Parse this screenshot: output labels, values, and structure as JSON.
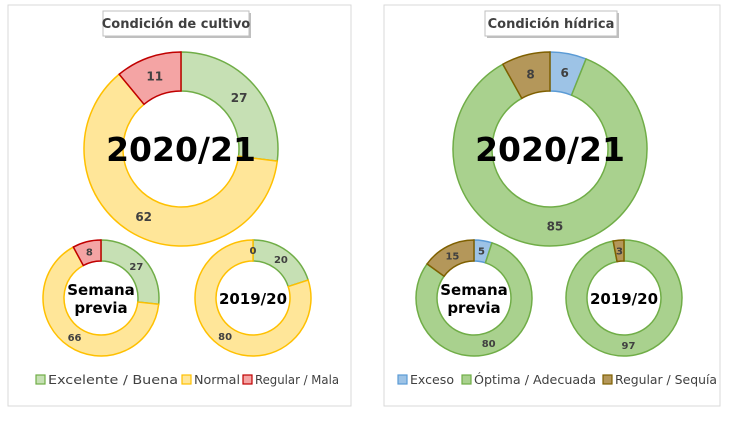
{
  "chart_data": [
    {
      "type": "pie",
      "title": "Condición de cultivo",
      "categories": [
        "Excelente / Buena",
        "Normal",
        "Regular / Mala"
      ],
      "colors": {
        "fill": [
          "#c6e0b4",
          "#ffe699",
          "#f4a4a4"
        ],
        "stroke": [
          "#70ad47",
          "#ffc000",
          "#c00000"
        ]
      },
      "legend_position": "bottom",
      "rings": [
        {
          "label": "2020/21",
          "values": [
            27,
            62,
            11
          ]
        },
        {
          "label": "Semana previa",
          "label_lines": [
            "Semana",
            "previa"
          ],
          "values": [
            27,
            66,
            8
          ]
        },
        {
          "label": "2019/20",
          "values": [
            20,
            80,
            0
          ]
        }
      ]
    },
    {
      "type": "pie",
      "title": "Condición hídrica",
      "categories": [
        "Exceso",
        "Óptima / Adecuada",
        "Regular / Sequía"
      ],
      "colors": {
        "fill": [
          "#9dc3e6",
          "#a9d18e",
          "#b4975a"
        ],
        "stroke": [
          "#5b9bd5",
          "#70ad47",
          "#7f6000"
        ]
      },
      "legend_position": "bottom",
      "rings": [
        {
          "label": "2020/21",
          "values": [
            6,
            85,
            8
          ]
        },
        {
          "label": "Semana previa",
          "label_lines": [
            "Semana",
            "previa"
          ],
          "values": [
            5,
            80,
            15
          ]
        },
        {
          "label": "2019/20",
          "values": [
            0,
            97,
            3
          ]
        }
      ]
    }
  ]
}
